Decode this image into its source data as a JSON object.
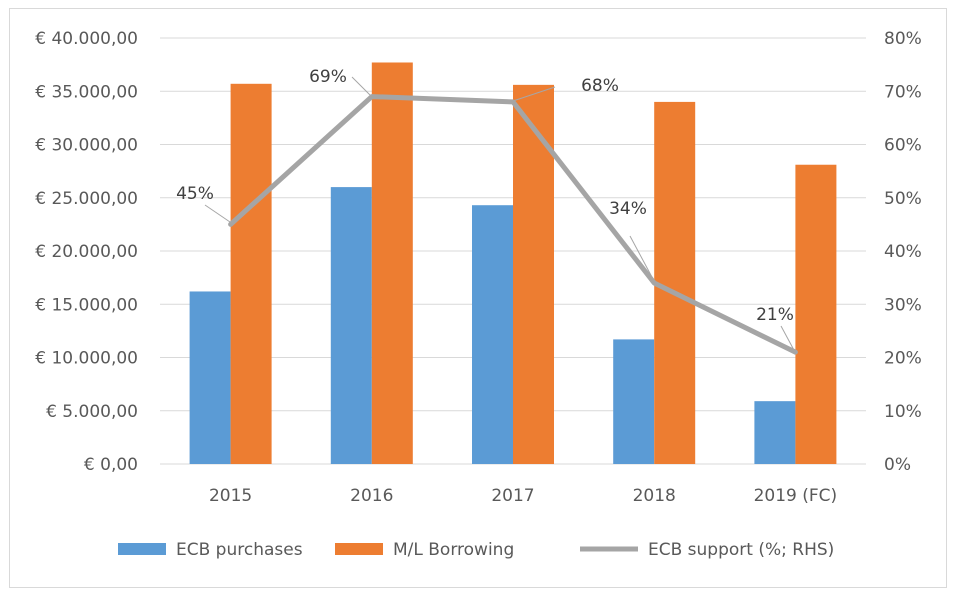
{
  "chart_data": {
    "type": "bar",
    "categories": [
      "2015",
      "2016",
      "2017",
      "2018",
      "2019 (FC)"
    ],
    "series": [
      {
        "name": "ECB purchases",
        "type": "bar",
        "axis": "left",
        "values": [
          16200,
          26000,
          24300,
          11700,
          5900
        ],
        "color": "#5b9bd5"
      },
      {
        "name": "M/L Borrowing",
        "type": "bar",
        "axis": "left",
        "values": [
          35700,
          37700,
          35600,
          34000,
          28100
        ],
        "color": "#ed7d31"
      },
      {
        "name": "ECB support (%; RHS)",
        "type": "line",
        "axis": "right",
        "values": [
          45,
          69,
          68,
          34,
          21
        ],
        "color": "#a5a5a5"
      }
    ],
    "data_labels": [
      "45%",
      "69%",
      "68%",
      "34%",
      "21%"
    ],
    "left_axis": {
      "ylim": [
        0,
        40000
      ],
      "tick_labels": [
        "€ 0,00",
        "€ 5.000,00",
        "€ 10.000,00",
        "€ 15.000,00",
        "€ 20.000,00",
        "€ 25.000,00",
        "€ 30.000,00",
        "€ 35.000,00",
        "€ 40.000,00"
      ]
    },
    "right_axis": {
      "ylim": [
        0,
        80
      ],
      "tick_labels": [
        "0%",
        "10%",
        "20%",
        "30%",
        "40%",
        "50%",
        "60%",
        "70%",
        "80%"
      ]
    },
    "grid": true,
    "legend_position": "bottom"
  }
}
